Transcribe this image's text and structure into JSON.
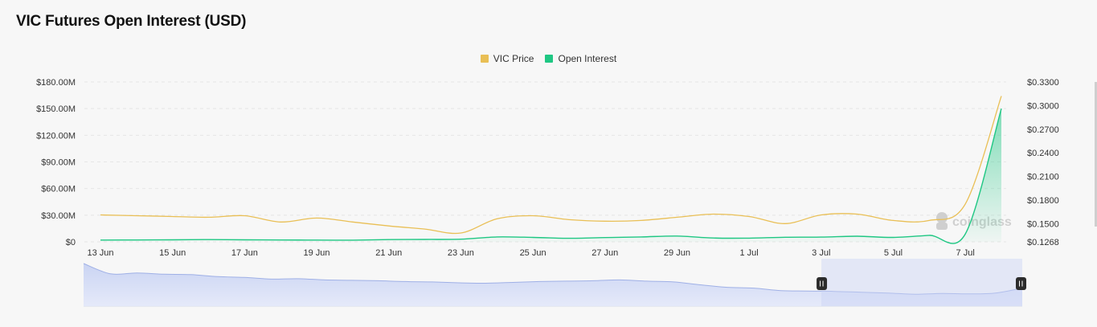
{
  "page": {
    "title": "VIC Futures Open Interest (USD)"
  },
  "chart_data": {
    "type": "line",
    "title": "VIC Futures Open Interest (USD)",
    "legend": [
      {
        "name": "VIC Price",
        "color": "#e9bf55"
      },
      {
        "name": "Open Interest",
        "color": "#1fc783"
      }
    ],
    "x_tick_labels": [
      "13 Jun",
      "15 Jun",
      "17 Jun",
      "19 Jun",
      "21 Jun",
      "23 Jun",
      "25 Jun",
      "27 Jun",
      "29 Jun",
      "1 Jul",
      "3 Jul",
      "5 Jul",
      "7 Jul"
    ],
    "y_left_tick_labels": [
      "$180.00M",
      "$150.00M",
      "$120.00M",
      "$90.00M",
      "$60.00M",
      "$30.00M",
      "$0"
    ],
    "y_right_tick_labels": [
      "$0.3300",
      "$0.3000",
      "$0.2700",
      "$0.2400",
      "$0.2100",
      "$0.1800",
      "$0.1500",
      "$0.1268"
    ],
    "y_left_range": [
      0,
      180000000
    ],
    "y_right_range": [
      0.1268,
      0.33
    ],
    "x": [
      "13 Jun",
      "14 Jun",
      "15 Jun",
      "16 Jun",
      "17 Jun",
      "18 Jun",
      "19 Jun",
      "20 Jun",
      "21 Jun",
      "22 Jun",
      "23 Jun",
      "24 Jun",
      "25 Jun",
      "26 Jun",
      "27 Jun",
      "28 Jun",
      "29 Jun",
      "30 Jun",
      "1 Jul",
      "2 Jul",
      "3 Jul",
      "4 Jul",
      "5 Jul",
      "6 Jul",
      "7 Jul",
      "8 Jul"
    ],
    "series": [
      {
        "name": "VIC Price",
        "axis": "right",
        "color": "#e9bf55",
        "values": [
          0.161,
          0.16,
          0.159,
          0.158,
          0.16,
          0.152,
          0.157,
          0.152,
          0.147,
          0.143,
          0.138,
          0.156,
          0.16,
          0.155,
          0.153,
          0.154,
          0.158,
          0.162,
          0.159,
          0.15,
          0.161,
          0.162,
          0.154,
          0.154,
          0.175,
          0.312
        ]
      },
      {
        "name": "Open Interest",
        "axis": "left",
        "color": "#1fc783",
        "values": [
          2000000,
          2100000,
          2300000,
          2500000,
          2300000,
          2100000,
          2000000,
          1900000,
          2500000,
          2700000,
          3000000,
          5500000,
          5000000,
          4000000,
          4800000,
          5500000,
          6500000,
          4300000,
          4200000,
          5200000,
          5300000,
          6300000,
          5000000,
          7300000,
          9000000,
          150000000
        ]
      }
    ],
    "grid": true,
    "legend_position": "top-center",
    "navigator": {
      "values": [
        100,
        75,
        77,
        74,
        73,
        68,
        66,
        62,
        63,
        60,
        59,
        58,
        56,
        55,
        53,
        52,
        54,
        56,
        57,
        58,
        60,
        57,
        55,
        48,
        42,
        40,
        34,
        33,
        32,
        30,
        28,
        25,
        27,
        26,
        28,
        40
      ],
      "selected_range": [
        0.786,
        1.0
      ]
    },
    "watermark": "coinglass"
  }
}
